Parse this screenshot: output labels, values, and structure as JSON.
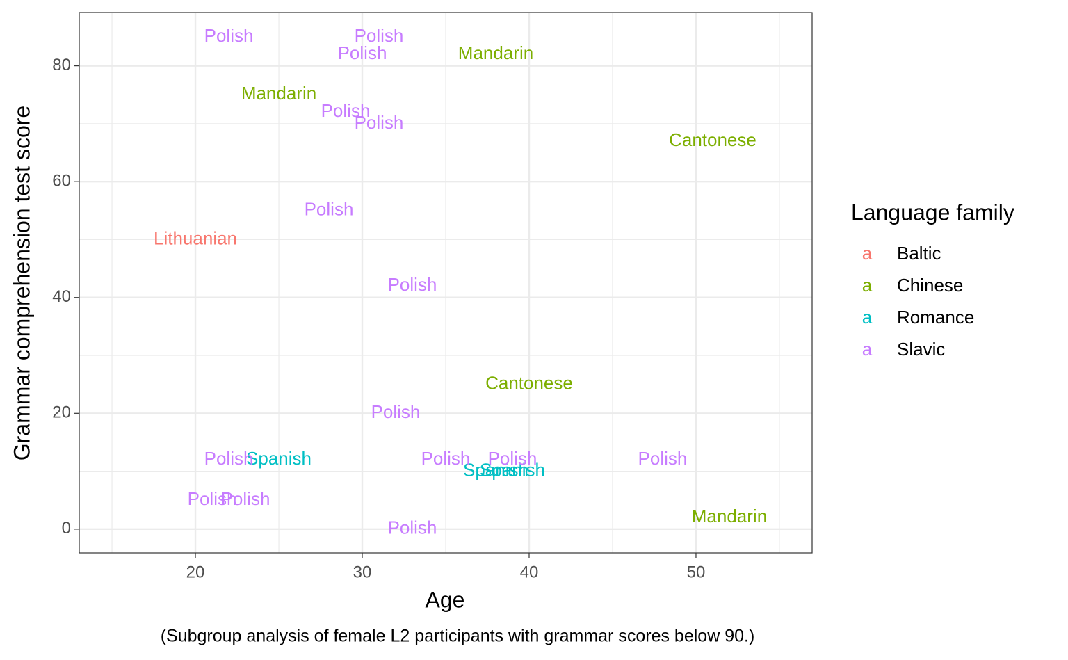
{
  "chart_data": {
    "type": "scatter",
    "xlabel": "Age",
    "ylabel": "Grammar comprehension test score",
    "caption": "(Subgroup analysis of female L2 participants with grammar scores below 90.)",
    "xlim": [
      13.04,
      56.96
    ],
    "ylim": [
      -4.1,
      89.2
    ],
    "xticks": [
      20,
      30,
      40,
      50
    ],
    "yticks": [
      0,
      20,
      40,
      60,
      80
    ],
    "xminor": [
      15,
      25,
      35,
      45,
      55
    ],
    "yminor": [
      10,
      30,
      50,
      70
    ],
    "grid": true,
    "legend_title": "Language family",
    "legend_key": "a",
    "legend_position": "right",
    "series": [
      {
        "name": "Baltic",
        "color": "#F8766D",
        "x": [
          20
        ],
        "values": [
          50
        ],
        "labels": [
          "Lithuanian"
        ]
      },
      {
        "name": "Chinese",
        "color": "#7CAE00",
        "x": [
          38,
          25,
          51,
          40,
          52
        ],
        "values": [
          82,
          75,
          67,
          25,
          2
        ],
        "labels": [
          "Mandarin",
          "Mandarin",
          "Cantonese",
          "Cantonese",
          "Mandarin"
        ]
      },
      {
        "name": "Romance",
        "color": "#00BFC4",
        "x": [
          25,
          38,
          39
        ],
        "values": [
          12,
          10,
          10
        ],
        "labels": [
          "Spanish",
          "Spanish",
          "Spanish"
        ]
      },
      {
        "name": "Slavic",
        "color": "#C77CFF",
        "x": [
          22,
          31,
          30,
          29,
          31,
          28,
          33,
          32,
          22,
          35,
          39,
          48,
          21,
          23,
          33
        ],
        "values": [
          85,
          85,
          82,
          72,
          70,
          55,
          42,
          20,
          12,
          12,
          12,
          12,
          5,
          5,
          0
        ],
        "labels": [
          "Polish",
          "Polish",
          "Polish",
          "Polish",
          "Polish",
          "Polish",
          "Polish",
          "Polish",
          "Polish",
          "Polish",
          "Polish",
          "Polish",
          "Polish",
          "Polish",
          "Polish"
        ]
      }
    ]
  }
}
